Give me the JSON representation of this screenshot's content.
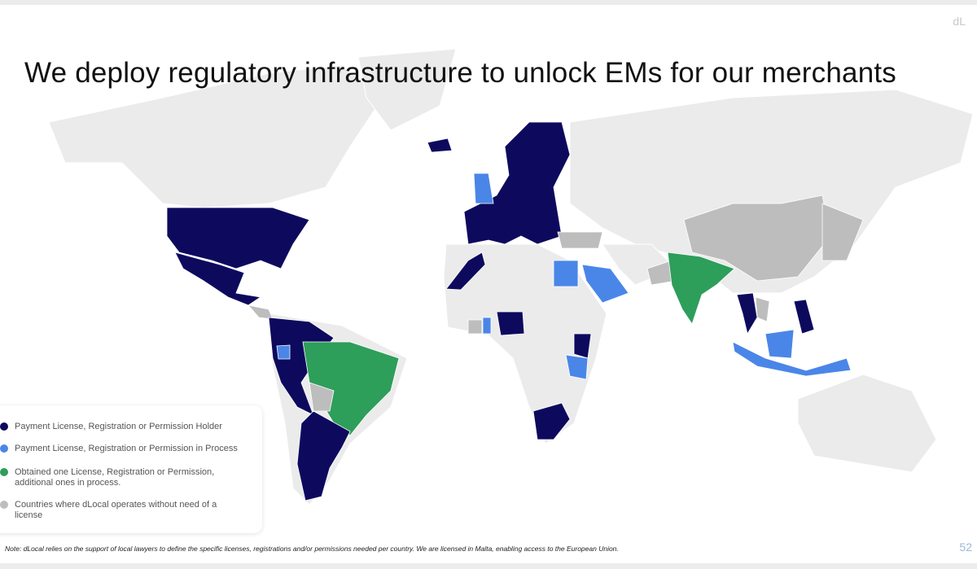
{
  "header": {
    "title": "We deploy regulatory infrastructure to unlock EMs for our merchants",
    "logo": "dL",
    "page_number": "52"
  },
  "legend": {
    "items": [
      {
        "label": "Payment License, Registration or Permission Holder",
        "color": "#0d0a5e"
      },
      {
        "label": "Payment License, Registration or Permission in Process",
        "color": "#4a86e8"
      },
      {
        "label": "Obtained one License, Registration or Permission, additional ones in process.",
        "color": "#2e9e5b"
      },
      {
        "label": "Countries where dLocal operates without need of a license",
        "color": "#bdbdbd"
      }
    ]
  },
  "footnote": "Note: dLocal relies on the support of local lawyers to define the specific licenses, registrations and/or permissions needed per country. We are licensed in Malta, enabling access to the European Union."
}
